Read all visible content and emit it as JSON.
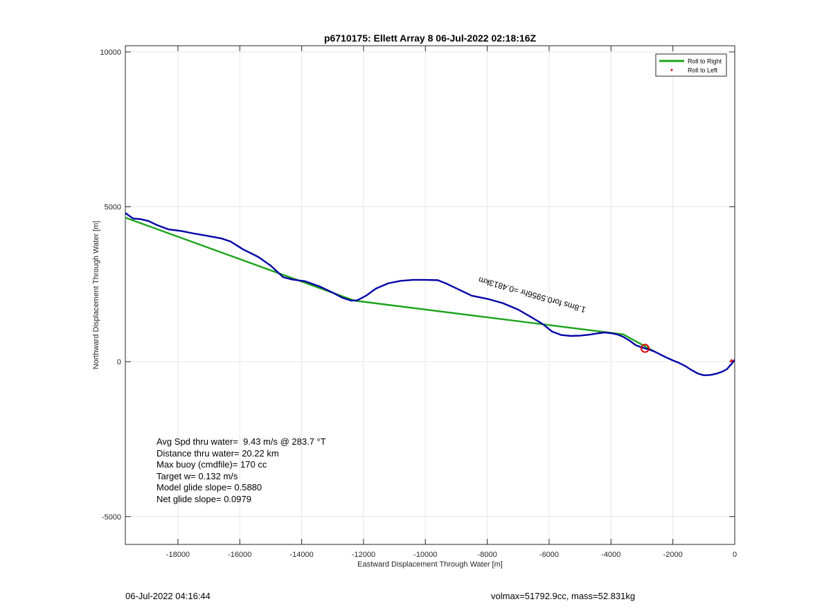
{
  "chart_data": {
    "type": "line",
    "title": "p6710175: Ellett Array 8 06-Jul-2022 02:18:16Z",
    "xlabel": "Eastward Displacement Through Water [m]",
    "ylabel": "Northward Displacement Through Water [m]",
    "xlim": [
      -19700,
      0
    ],
    "ylim": [
      -5900,
      10200
    ],
    "xticks": [
      -18000,
      -16000,
      -14000,
      -12000,
      -10000,
      -8000,
      -6000,
      -4000,
      -2000,
      0
    ],
    "yticks": [
      -5000,
      0,
      5000,
      10000
    ],
    "grid": true,
    "legend_position": "top-right",
    "legend": [
      {
        "label": "Roll to Right",
        "color": "#1aa31a",
        "marker": "line"
      },
      {
        "label": "Roll to Left",
        "color": "#dd0000",
        "marker": "dot"
      }
    ],
    "series": [
      {
        "color": "#0000a8",
        "x": [
          -19700,
          -19450,
          -19200,
          -18950,
          -18700,
          -18300,
          -17900,
          -17500,
          -17100,
          -16600,
          -16300,
          -15900,
          -15400,
          -15000,
          -14600,
          -14300,
          -13900,
          -13400,
          -13000,
          -12700,
          -12400,
          -12200,
          -11900,
          -11600,
          -11200,
          -10800,
          -10400,
          -10000,
          -9600,
          -9300,
          -8900,
          -8500,
          -8000,
          -7500,
          -7000,
          -6600,
          -6200,
          -5900,
          -5600,
          -5300,
          -5000,
          -4700,
          -4400,
          -4200,
          -4000,
          -3800,
          -3600,
          -3400,
          -3200,
          -3000,
          -2800,
          -2600,
          -2400,
          -2200,
          -2000,
          -1800,
          -1600,
          -1400,
          -1200,
          -1000,
          -800,
          -600,
          -400,
          -250,
          -120,
          0
        ],
        "y": [
          4800,
          4620,
          4600,
          4540,
          4420,
          4270,
          4220,
          4140,
          4070,
          3980,
          3880,
          3630,
          3380,
          3100,
          2730,
          2650,
          2600,
          2420,
          2230,
          2070,
          1970,
          1980,
          2140,
          2360,
          2530,
          2610,
          2640,
          2640,
          2630,
          2510,
          2320,
          2130,
          2030,
          1890,
          1680,
          1450,
          1210,
          970,
          860,
          830,
          840,
          870,
          920,
          940,
          920,
          880,
          800,
          680,
          530,
          460,
          400,
          330,
          230,
          130,
          40,
          -40,
          -140,
          -270,
          -380,
          -440,
          -430,
          -390,
          -320,
          -240,
          -90,
          60
        ]
      },
      {
        "name": "Roll to Right",
        "color": "#1aa31a",
        "x": [
          -19700,
          -12300,
          -3600,
          -2600
        ],
        "y": [
          4650,
          1970,
          880,
          330
        ]
      }
    ],
    "markers": [
      {
        "type": "circle",
        "x": -2900,
        "y": 430,
        "color": "#dd0000"
      },
      {
        "type": "dot",
        "x": -100,
        "y": 30,
        "color": "#dd0000"
      }
    ],
    "annotations": [
      {
        "text": "1.8ms for0.5956hr =0.4813km",
        "x": -4800,
        "y": 1750,
        "rotation_deg": 196
      }
    ]
  },
  "stats": {
    "lines": [
      "Avg Spd thru water=  9.43 m/s @ 283.7 °T",
      "Distance thru water= 20.22 km",
      "Max buoy (cmdfile)= 170 cc",
      "Target w= 0.132 m/s",
      "Model glide slope= 0.5880",
      "Net glide slope= 0.0979"
    ]
  },
  "footer": {
    "timestamp": "06-Jul-2022 04:16:44",
    "volume_mass": "volmax=51792.9cc, mass=52.831kg"
  }
}
